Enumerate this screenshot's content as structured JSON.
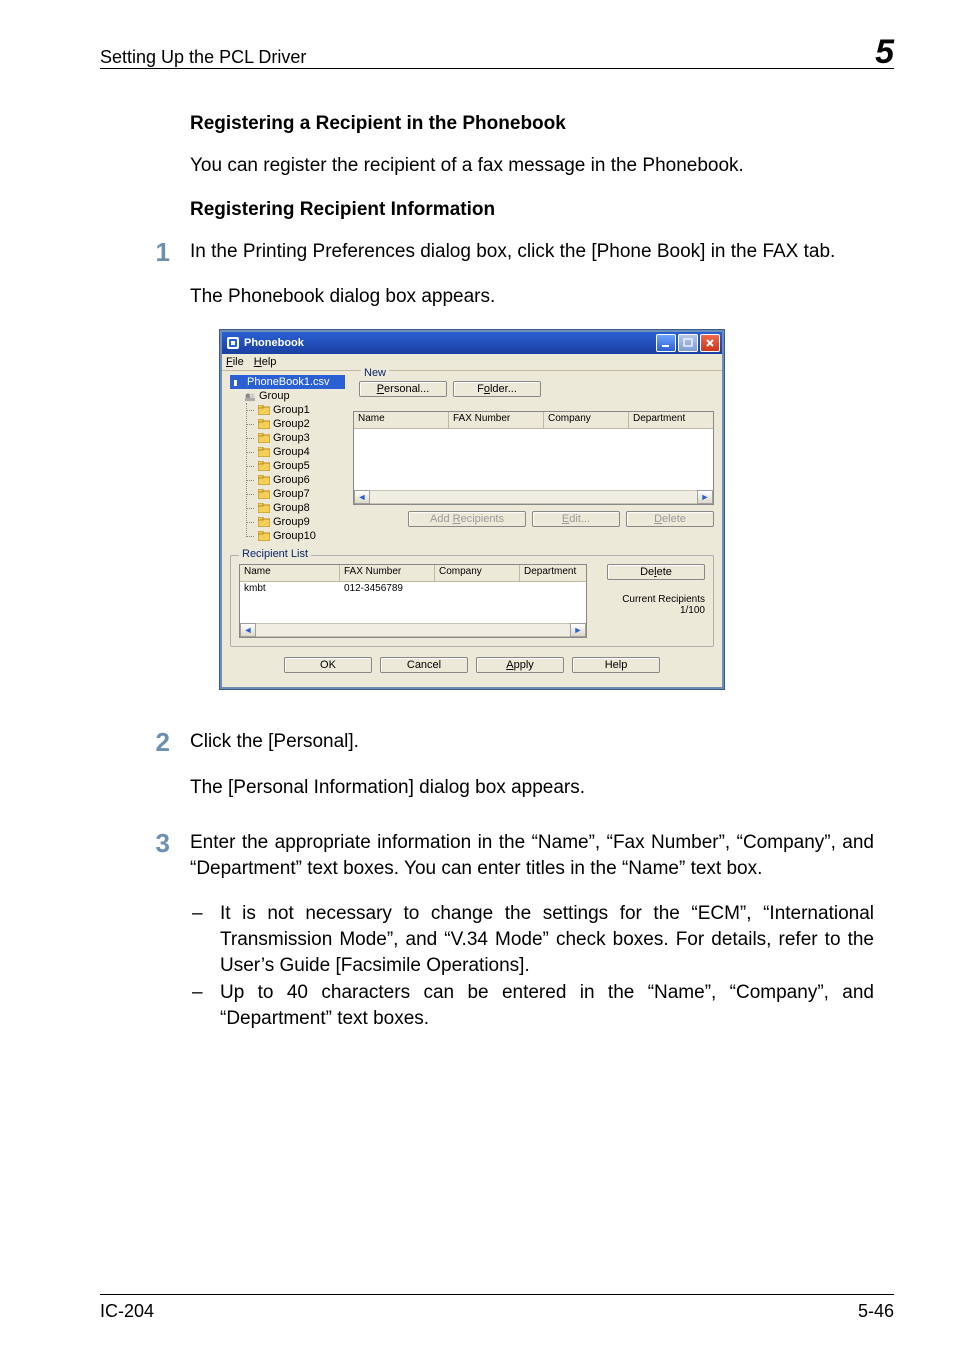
{
  "header": {
    "section_title": "Setting Up the PCL Driver",
    "chapter_number": "5"
  },
  "footer": {
    "left": "IC-204",
    "right": "5-46"
  },
  "text": {
    "h1": "Registering a Recipient in the Phonebook",
    "p1": "You can register the recipient of a fax message in the Phonebook.",
    "h2": "Registering Recipient Information",
    "step1": "In the Printing Preferences dialog box, click the [Phone Book] in the FAX tab.",
    "step1b": "The Phonebook dialog box appears.",
    "step2": "Click the [Personal].",
    "step2b": "The [Personal Information] dialog box appears.",
    "step3": "Enter the appropriate information in the “Name”, “Fax Number”, “Company”, and “Department” text boxes. You can enter titles in the “Name” text box.",
    "bullets": [
      "It is not necessary to change the settings for the “ECM”, “International Transmission Mode”, and “V.34 Mode” check boxes. For details, refer to the User’s Guide [Facsimile Operations].",
      "Up to 40 characters can be entered in the “Name”, “Company”, and “Department” text boxes."
    ]
  },
  "step_numbers": {
    "s1": "1",
    "s2": "2",
    "s3": "3"
  },
  "dialog": {
    "title": "Phonebook",
    "menu": {
      "file": "File",
      "file_u": "F",
      "help": "Help",
      "help_u": "H"
    },
    "tree": {
      "root": "PhoneBook1.csv",
      "group": "Group",
      "items": [
        "Group1",
        "Group2",
        "Group3",
        "Group4",
        "Group5",
        "Group6",
        "Group7",
        "Group8",
        "Group9",
        "Group10"
      ]
    },
    "new_label": "New",
    "buttons": {
      "personal": "Personal...",
      "personal_u": "P",
      "folder": "Folder...",
      "folder_u": "o",
      "add_recipients": "Add Recipients",
      "add_recipients_u": "R",
      "edit": "Edit...",
      "edit_u": "E",
      "delete_top": "Delete",
      "delete_top_u": "D",
      "delete_bottom": "Delete",
      "delete_bottom_u": "l",
      "ok": "OK",
      "cancel": "Cancel",
      "apply": "Apply",
      "apply_u": "A",
      "help": "Help"
    },
    "list_columns": {
      "name": "Name",
      "fax": "FAX Number",
      "company": "Company",
      "department": "Department"
    },
    "recipient_list_label": "Recipient List",
    "recipient_row": {
      "name": "kmbt",
      "fax": "012-3456789",
      "company": "",
      "department": ""
    },
    "current_recipients_label": "Current Recipients",
    "current_recipients_count": "1/100",
    "colors": {
      "titlebar_top": "#2a60d4",
      "titlebar_bottom": "#1a3fa0",
      "dialog_bg": "#ece9d8",
      "selection_bg": "#2a60d4",
      "step_number_color": "#6c90b3",
      "legend_color": "#0a246a",
      "close_btn": "#c8371b"
    }
  }
}
